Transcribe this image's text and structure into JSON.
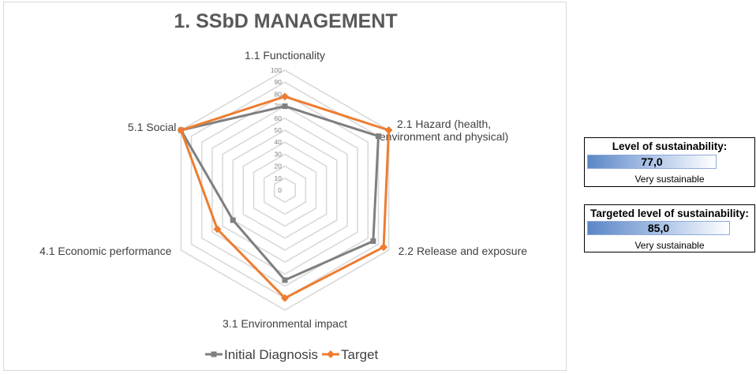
{
  "chart_data": {
    "type": "radar",
    "title": "1. SSbD MANAGEMENT",
    "axes": [
      "1.1 Functionality",
      "2.1 Hazard (health, environment and physical)",
      "2.2 Release and exposure",
      "3.1 Environmental impact",
      "4.1 Economic performance",
      "5.1 Social"
    ],
    "axis_label_lines": [
      [
        "1.1 Functionality"
      ],
      [
        "2.1 Hazard (health,",
        "environment and physical)"
      ],
      [
        "2.2 Release and exposure"
      ],
      [
        "3.1 Environmental impact"
      ],
      [
        "4.1 Economic performance"
      ],
      [
        "5.1 Social"
      ]
    ],
    "rlim": [
      0,
      100
    ],
    "r_ticks": [
      0,
      10,
      20,
      30,
      40,
      50,
      60,
      70,
      80,
      90,
      100
    ],
    "series": [
      {
        "name": "Initial Diagnosis",
        "values": [
          70,
          90,
          85,
          75,
          50,
          100
        ],
        "color": "#7f7f7f",
        "marker": "square"
      },
      {
        "name": "Target",
        "values": [
          78,
          100,
          95,
          90,
          65,
          100
        ],
        "color": "#ed7d31",
        "marker": "diamond"
      }
    ],
    "legend_position": "bottom",
    "grid": true
  },
  "sustainability_boxes": [
    {
      "title": "Level of sustainability:",
      "value": "77,0",
      "value_num": 77.0,
      "rating": "Very sustainable"
    },
    {
      "title": "Targeted  level of sustainability:",
      "value": "85,0",
      "value_num": 85.0,
      "rating": "Very sustainable"
    }
  ],
  "colors": {
    "bar_start": "#5b86c6",
    "bar_end": "#ffffff",
    "grid": "#d9d9d9"
  }
}
